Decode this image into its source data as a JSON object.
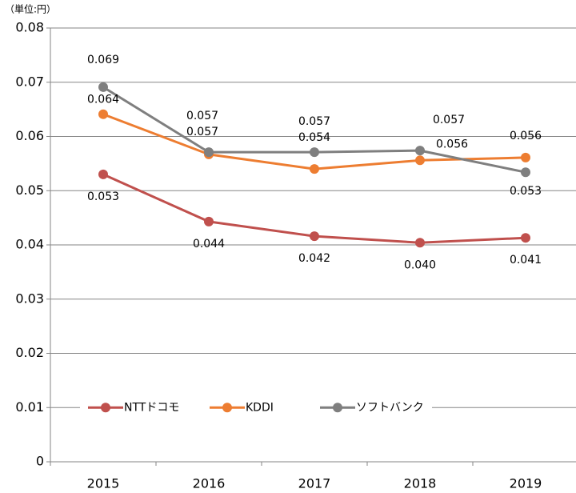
{
  "chart_data": {
    "type": "line",
    "unit_label": "（単位:円）",
    "categories": [
      "2015",
      "2016",
      "2017",
      "2018",
      "2019"
    ],
    "ylim": [
      0,
      0.08
    ],
    "yticks": [
      0,
      0.01,
      0.02,
      0.03,
      0.04,
      0.05,
      0.06,
      0.07,
      0.08
    ],
    "grid": true,
    "legend": "bottom",
    "series": [
      {
        "name": "NTTドコモ",
        "color": "#c0504d",
        "values": [
          0.053,
          0.0443,
          0.0416,
          0.0404,
          0.0413
        ],
        "value_labels": [
          "0.053",
          "0.044",
          "0.042",
          "0.040",
          "0.041"
        ]
      },
      {
        "name": "KDDI",
        "color": "#ed7d31",
        "values": [
          0.0641,
          0.0567,
          0.054,
          0.0556,
          0.0561
        ],
        "value_labels": [
          "0.064",
          "0.057",
          "0.054",
          "0.056",
          "0.056"
        ]
      },
      {
        "name": "ソフトバンク",
        "color": "#7f7f7f",
        "values": [
          0.0691,
          0.0571,
          0.0571,
          0.0574,
          0.0534
        ],
        "value_labels": [
          "0.069",
          "0.057",
          "0.057",
          "0.057",
          "0.053"
        ]
      }
    ]
  }
}
